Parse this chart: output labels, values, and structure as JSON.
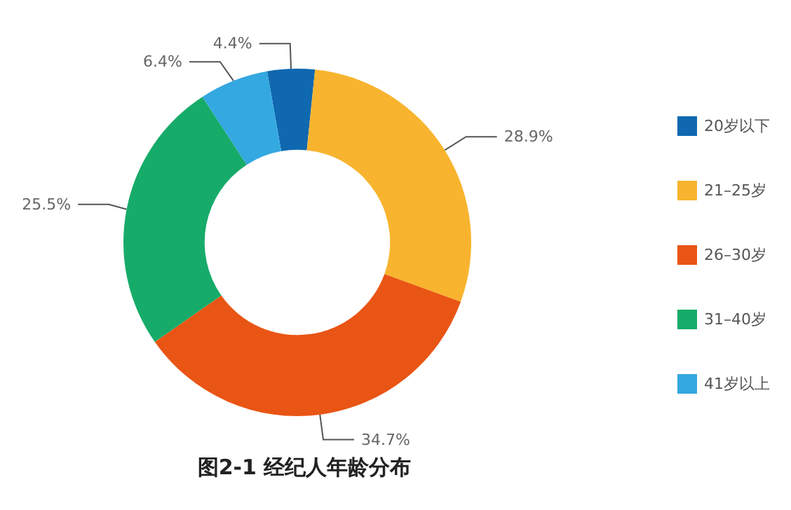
{
  "chart_data": {
    "type": "donut",
    "title": "图2-1 经纪人年龄分布",
    "categories": [
      "20岁以下",
      "21–25岁",
      "26–30岁",
      "31–40岁",
      "41岁以上"
    ],
    "values": [
      4.4,
      28.9,
      34.7,
      25.5,
      6.4
    ],
    "value_labels": [
      "4.4%",
      "28.9%",
      "34.7%",
      "25.5%",
      "6.4%"
    ],
    "colors": [
      "#0f68b0",
      "#f8b42e",
      "#e95514",
      "#17ab69",
      "#34a8e0"
    ],
    "legend": "right"
  }
}
